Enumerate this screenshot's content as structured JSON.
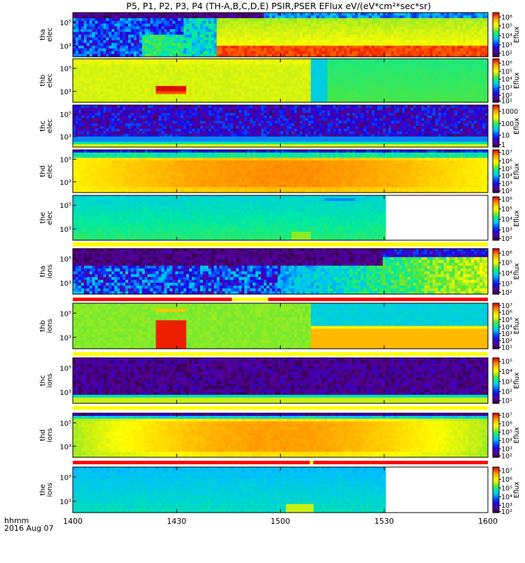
{
  "title": "P5, P1, P2, P3, P4 (TH-A,B,C,D,E) PSIR,PSER EFlux eV/(eV*cm²*sec*sr)",
  "time_axis": {
    "label_line1": "hhmm",
    "label_line2": "2016 Aug 07",
    "ticks": [
      "1400",
      "1430",
      "1500",
      "1530",
      "1600"
    ],
    "tick_minutes": [
      0,
      30,
      60,
      90,
      120
    ],
    "range_minutes": [
      0,
      120
    ]
  },
  "colorbar_label": "Eflux",
  "chart_data": [
    {
      "type": "heatmap",
      "panel": "tha",
      "probe": "tha",
      "species": "elec",
      "ylabel": [
        "tha",
        "elec"
      ],
      "y_ticks": [
        "10⁵",
        "10³"
      ],
      "colorbar_ticks": [
        "10⁶",
        "10⁵",
        "10⁴",
        "10³",
        "10²"
      ],
      "status_bar": null
    },
    {
      "type": "heatmap",
      "panel": "thb",
      "probe": "thb",
      "species": "elec",
      "ylabel": [
        "thb",
        "elec"
      ],
      "y_ticks": [
        "10⁵",
        "10³"
      ],
      "colorbar_ticks": [
        "10⁶",
        "10⁵",
        "10⁴",
        "10³",
        "10²",
        "10¹"
      ],
      "status_bar": null
    },
    {
      "type": "heatmap",
      "panel": "thc",
      "probe": "thc",
      "species": "elec",
      "ylabel": [
        "thc",
        "elec"
      ],
      "y_ticks": [
        "10⁵",
        "10³"
      ],
      "colorbar_ticks": [
        "1000",
        "100",
        "10",
        "1"
      ],
      "status_bar": null
    },
    {
      "type": "heatmap",
      "panel": "thd",
      "probe": "thd",
      "species": "elec",
      "ylabel": [
        "thd",
        "elec"
      ],
      "y_ticks": [
        "10⁵",
        "10³"
      ],
      "colorbar_ticks": [
        "10⁷",
        "10⁶",
        "10⁵",
        "10⁴",
        "10³",
        "10²"
      ],
      "status_bar": null
    },
    {
      "type": "heatmap",
      "panel": "the",
      "probe": "the",
      "species": "elec",
      "ylabel": [
        "the",
        "elec"
      ],
      "y_ticks": [
        "10⁵",
        "10³"
      ],
      "colorbar_ticks": [
        "10⁶",
        "10⁵",
        "10⁴",
        "10³",
        "10²"
      ],
      "status_bar": {
        "segments": [
          {
            "from": 0,
            "to": 120,
            "color": "#ffff00"
          }
        ]
      }
    },
    {
      "type": "heatmap",
      "panel": "tha",
      "probe": "tha",
      "species": "ions",
      "ylabel": [
        "tha",
        "ions"
      ],
      "y_ticks": [
        "10⁵",
        "10³"
      ],
      "colorbar_ticks": [
        "10⁶",
        "10⁵",
        "10⁴",
        "10³",
        "10²"
      ],
      "status_bar": {
        "segments": [
          {
            "from": 0,
            "to": 46,
            "color": "#ff0000"
          },
          {
            "from": 46,
            "to": 56.5,
            "color": "#ffff00"
          },
          {
            "from": 56.5,
            "to": 120,
            "color": "#ff0000"
          }
        ]
      }
    },
    {
      "type": "heatmap",
      "panel": "thb",
      "probe": "thb",
      "species": "ions",
      "ylabel": [
        "thb",
        "ions"
      ],
      "y_ticks": [
        "10⁵",
        "10³"
      ],
      "colorbar_ticks": [
        "10⁷",
        "10⁶",
        "10⁵",
        "10⁴",
        "10³",
        "10²",
        "10¹"
      ],
      "status_bar": {
        "segments": [
          {
            "from": 0,
            "to": 120,
            "color": "#ffff00"
          }
        ]
      }
    },
    {
      "type": "heatmap",
      "panel": "thc",
      "probe": "thc",
      "species": "ions",
      "ylabel": [
        "thc",
        "ions"
      ],
      "y_ticks": [
        "10⁵",
        "10³"
      ],
      "colorbar_ticks": [
        "10⁵",
        "10⁴",
        "10³",
        "10²",
        "10¹"
      ],
      "status_bar": {
        "segments": [
          {
            "from": 0,
            "to": 120,
            "color": "#ffff00"
          }
        ]
      }
    },
    {
      "type": "heatmap",
      "panel": "thd",
      "probe": "thd",
      "species": "ions",
      "ylabel": [
        "thd",
        "ions"
      ],
      "y_ticks": [
        "10⁵",
        "10³"
      ],
      "colorbar_ticks": [
        "10⁷",
        "10⁶",
        "10⁵",
        "10⁴",
        "10³",
        "10²"
      ],
      "status_bar": {
        "segments": [
          {
            "from": 0,
            "to": 68.5,
            "color": "#ff0000"
          },
          {
            "from": 68.5,
            "to": 69.5,
            "color": "#ffff00"
          },
          {
            "from": 69.5,
            "to": 120,
            "color": "#ff0000"
          }
        ]
      }
    },
    {
      "type": "heatmap",
      "panel": "the",
      "probe": "the",
      "species": "ions",
      "ylabel": [
        "the",
        "ions"
      ],
      "y_ticks": [
        "10⁵",
        "10³"
      ],
      "colorbar_ticks": [
        "10⁷",
        "10⁶",
        "10⁵",
        "10⁴",
        "10³",
        "10²"
      ],
      "status_bar": null
    }
  ]
}
